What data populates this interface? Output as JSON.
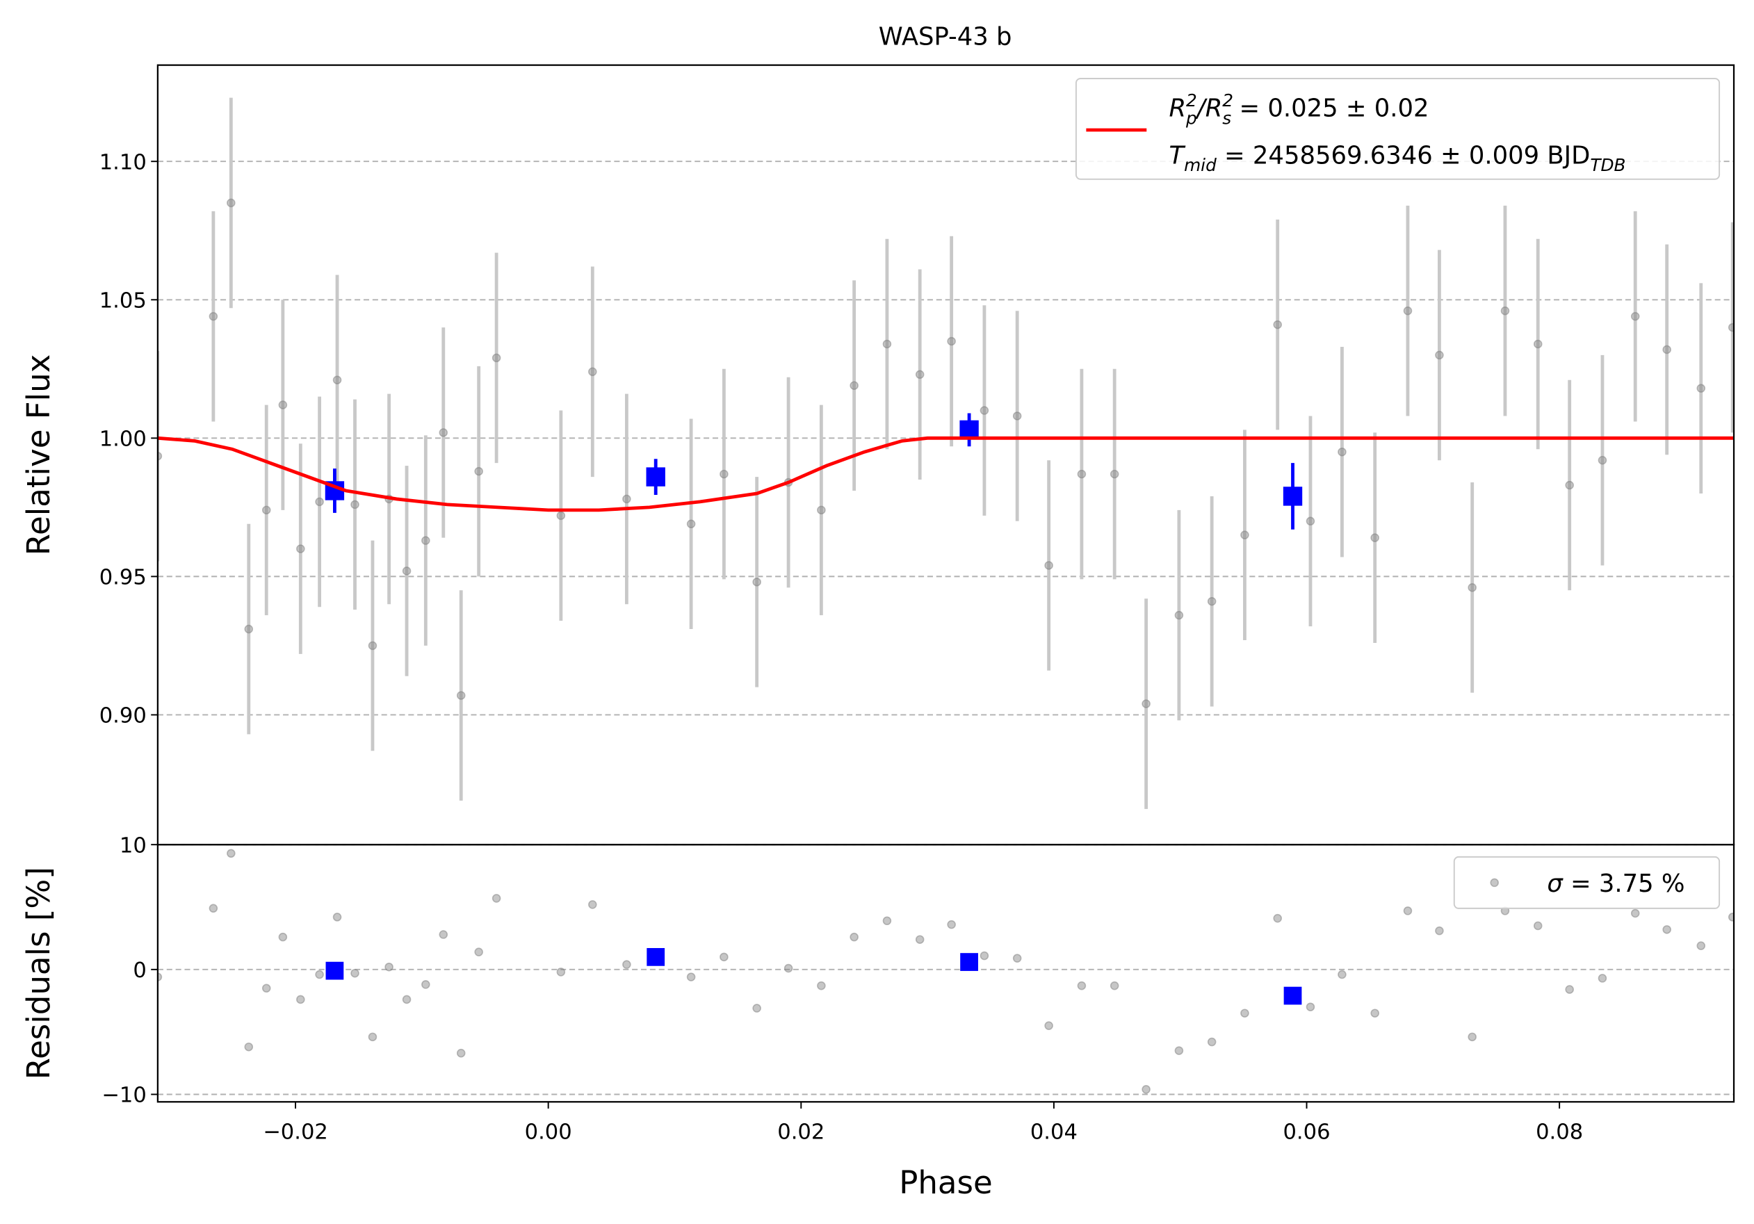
{
  "chart_data": [
    {
      "type": "errorbar",
      "title": "WASP-43 b",
      "ylabel": "Relative Flux",
      "xlim": [
        -0.0309,
        0.0938
      ],
      "ylim": [
        0.8531,
        1.1348
      ],
      "yticks": [
        {
          "value": 0.9,
          "label": "0.90"
        },
        {
          "value": 0.95,
          "label": "0.95"
        },
        {
          "value": 1.0,
          "label": "1.00"
        },
        {
          "value": 1.05,
          "label": "1.05"
        },
        {
          "value": 1.1,
          "label": "1.10"
        }
      ],
      "grid": true,
      "legend": "upper right",
      "series": [
        {
          "kind": "points",
          "color": "#808080",
          "errcolor": "#c8c8c8",
          "x": [
            -0.0309,
            -0.0265,
            -0.0251,
            -0.0237,
            -0.0223,
            -0.021,
            -0.0196,
            -0.0181,
            -0.0167,
            -0.0153,
            -0.0139,
            -0.0126,
            -0.0112,
            -0.0097,
            -0.0083,
            -0.0069,
            -0.0055,
            -0.0041,
            0.001,
            0.0035,
            0.0062,
            0.0113,
            0.0139,
            0.0165,
            0.019,
            0.0216,
            0.0242,
            0.0268,
            0.0294,
            0.0319,
            0.0345,
            0.0371,
            0.0396,
            0.0422,
            0.0448,
            0.0473,
            0.0499,
            0.0525,
            0.0551,
            0.0577,
            0.0603,
            0.0628,
            0.0654,
            0.068,
            0.0705,
            0.0731,
            0.0757,
            0.0783,
            0.0808,
            0.0834,
            0.086,
            0.0885,
            0.0912,
            0.0937
          ],
          "values": [
            0.9935,
            1.044,
            1.085,
            0.931,
            0.974,
            1.012,
            0.96,
            0.977,
            1.021,
            0.976,
            0.925,
            0.978,
            0.952,
            0.963,
            1.002,
            0.907,
            0.988,
            1.029,
            0.972,
            1.024,
            0.978,
            0.969,
            0.987,
            0.948,
            0.984,
            0.974,
            1.019,
            1.034,
            1.023,
            1.035,
            1.01,
            1.008,
            0.954,
            0.987,
            0.987,
            0.904,
            0.936,
            0.941,
            0.965,
            1.041,
            0.97,
            0.995,
            0.964,
            1.046,
            1.03,
            0.946,
            1.046,
            1.034,
            0.983,
            0.992,
            1.044,
            1.032,
            1.018,
            1.04
          ],
          "errors": [
            0.038,
            0.038,
            0.038,
            0.038,
            0.038,
            0.038,
            0.038,
            0.038,
            0.038,
            0.038,
            0.038,
            0.038,
            0.038,
            0.038,
            0.038,
            0.038,
            0.038,
            0.038,
            0.038,
            0.038,
            0.038,
            0.038,
            0.038,
            0.038,
            0.038,
            0.038,
            0.038,
            0.038,
            0.038,
            0.038,
            0.038,
            0.038,
            0.038,
            0.038,
            0.038,
            0.038,
            0.038,
            0.038,
            0.038,
            0.038,
            0.038,
            0.038,
            0.038,
            0.038,
            0.038,
            0.038,
            0.038,
            0.038,
            0.038,
            0.038,
            0.038,
            0.038,
            0.038,
            0.038
          ]
        },
        {
          "kind": "binned",
          "color": "#0000ff",
          "x": [
            -0.0169,
            0.0085,
            0.0333,
            0.0589
          ],
          "values": [
            0.981,
            0.986,
            1.003,
            0.979
          ],
          "errors": [
            0.008,
            0.0065,
            0.006,
            0.012
          ]
        },
        {
          "kind": "line",
          "color": "#ff0000",
          "name": [
            [
              "R",
              "i"
            ],
            [
              "2",
              "sup"
            ],
            [
              "p",
              "sub"
            ],
            [
              "/",
              "i"
            ],
            [
              "R",
              "i"
            ],
            [
              "2",
              "sup"
            ],
            [
              "s",
              "sub"
            ],
            [
              " = 0.025 ± 0.02",
              ""
            ]
          ],
          "name2": [
            [
              "T",
              "i"
            ],
            [
              "mid",
              "sub"
            ],
            [
              " = 2458569.6346 ± 0.009 BJD",
              ""
            ],
            [
              "TDB",
              "sub"
            ]
          ],
          "x": [
            -0.0309,
            -0.028,
            -0.025,
            -0.022,
            -0.019,
            -0.016,
            -0.012,
            -0.008,
            -0.004,
            0,
            0.004,
            0.008,
            0.012,
            0.0165,
            0.019,
            0.022,
            0.025,
            0.028,
            0.03,
            0.0938
          ],
          "values": [
            1.0,
            0.999,
            0.996,
            0.991,
            0.986,
            0.981,
            0.978,
            0.976,
            0.975,
            0.974,
            0.974,
            0.975,
            0.977,
            0.98,
            0.984,
            0.99,
            0.995,
            0.999,
            1.0,
            1.0
          ]
        }
      ]
    },
    {
      "type": "scatter",
      "ylabel": "Residuals [%]",
      "xlabel": "Phase",
      "xlim": [
        -0.0309,
        0.0938
      ],
      "ylim": [
        -10.6,
        10.0
      ],
      "xticks": [
        {
          "value": -0.02,
          "label": "−0.02"
        },
        {
          "value": 0,
          "label": "0.00"
        },
        {
          "value": 0.02,
          "label": "0.02"
        },
        {
          "value": 0.04,
          "label": "0.04"
        },
        {
          "value": 0.06,
          "label": "0.06"
        },
        {
          "value": 0.08,
          "label": "0.08"
        }
      ],
      "yticks": [
        {
          "value": -10,
          "label": "−10"
        },
        0,
        10
      ],
      "grid": true,
      "legend": "upper right",
      "series": [
        {
          "kind": "points",
          "color": "#808080",
          "name": [
            [
              "σ",
              "i"
            ],
            [
              " = 3.75 %",
              ""
            ]
          ],
          "x": [
            -0.0309,
            -0.0265,
            -0.0251,
            -0.0237,
            -0.0223,
            -0.021,
            -0.0196,
            -0.0181,
            -0.0167,
            -0.0153,
            -0.0139,
            -0.0126,
            -0.0112,
            -0.0097,
            -0.0083,
            -0.0069,
            -0.0055,
            -0.0041,
            0.001,
            0.0035,
            0.0062,
            0.0113,
            0.0139,
            0.0165,
            0.019,
            0.0216,
            0.0242,
            0.0268,
            0.0294,
            0.0319,
            0.0345,
            0.0371,
            0.0396,
            0.0422,
            0.0448,
            0.0473,
            0.0499,
            0.0525,
            0.0551,
            0.0577,
            0.0603,
            0.0628,
            0.0654,
            0.068,
            0.0705,
            0.0731,
            0.0757,
            0.0783,
            0.0808,
            0.0834,
            0.086,
            0.0885,
            0.0912,
            0.0937
          ],
          "values": [
            -0.6,
            4.9,
            9.3,
            -6.2,
            -1.5,
            2.6,
            -2.4,
            -0.4,
            4.2,
            -0.3,
            -5.4,
            0.2,
            -2.4,
            -1.2,
            2.8,
            -6.7,
            1.4,
            5.7,
            -0.2,
            5.2,
            0.4,
            -0.6,
            1.0,
            -3.1,
            0.1,
            -1.3,
            2.6,
            3.9,
            2.4,
            3.6,
            1.1,
            0.9,
            -4.5,
            -1.3,
            -1.3,
            -9.6,
            -6.5,
            -5.8,
            -3.5,
            4.1,
            -3.0,
            -0.4,
            -3.5,
            4.7,
            3.1,
            -5.4,
            4.7,
            3.5,
            -1.6,
            -0.7,
            4.5,
            3.2,
            1.9,
            4.2
          ]
        },
        {
          "kind": "binned",
          "color": "#0000ff",
          "x": [
            -0.0169,
            0.0085,
            0.0333,
            0.0589
          ],
          "values": [
            -0.1,
            1.0,
            0.6,
            -2.1
          ]
        }
      ]
    }
  ]
}
